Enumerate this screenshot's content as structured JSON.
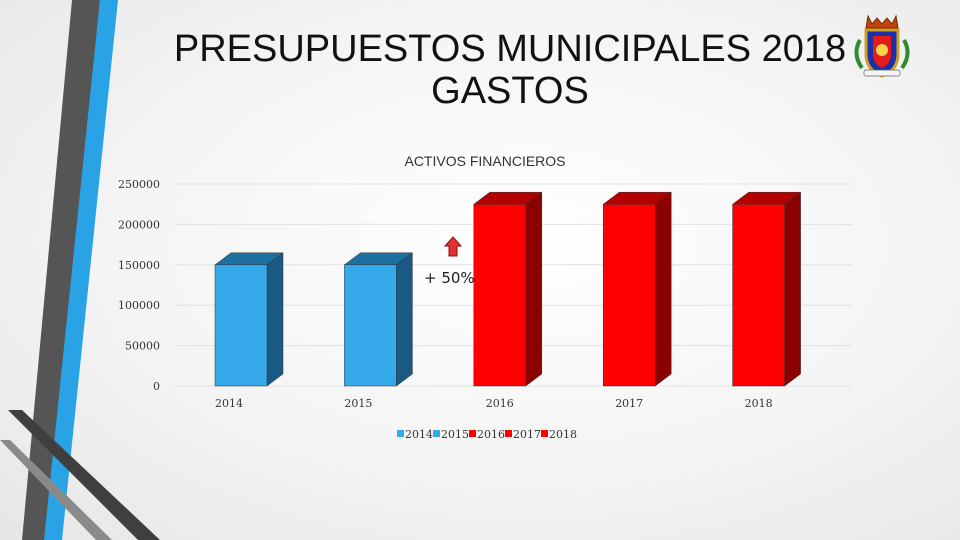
{
  "slide": {
    "title_line1": "PRESUPUESTOS MUNICIPALES 2018",
    "title_line2": "GASTOS"
  },
  "colors": {
    "blue": "#35a9ea",
    "blue_dark": "#1d6f9f",
    "blue_side": "#1a5a82",
    "red": "#ff0000",
    "red_dark": "#b30000",
    "red_side": "#8b0000",
    "decor_gray": "#4a4a4a",
    "decor_blue": "#2aa3e6"
  },
  "chart_data": {
    "type": "bar",
    "title": "ACTIVOS FINANCIEROS",
    "categories": [
      "2014",
      "2015",
      "2016",
      "2017",
      "2018"
    ],
    "values": [
      150000,
      150000,
      225000,
      225000,
      225000
    ],
    "series_colors": [
      "blue",
      "blue",
      "red",
      "red",
      "red"
    ],
    "yticks": [
      0,
      50000,
      100000,
      150000,
      200000,
      250000
    ],
    "ytick_labels": [
      "0",
      "50000",
      "100000",
      "150000",
      "200000",
      "250000"
    ],
    "ylim": [
      0,
      250000
    ],
    "xlabel": "",
    "ylabel": "",
    "legend": [
      "2014",
      "2015",
      "2016",
      "2017",
      "2018"
    ],
    "legend_position": "bottom",
    "annotation": {
      "text": "+ 50%",
      "near_category": "2016",
      "arrow": "up"
    }
  }
}
